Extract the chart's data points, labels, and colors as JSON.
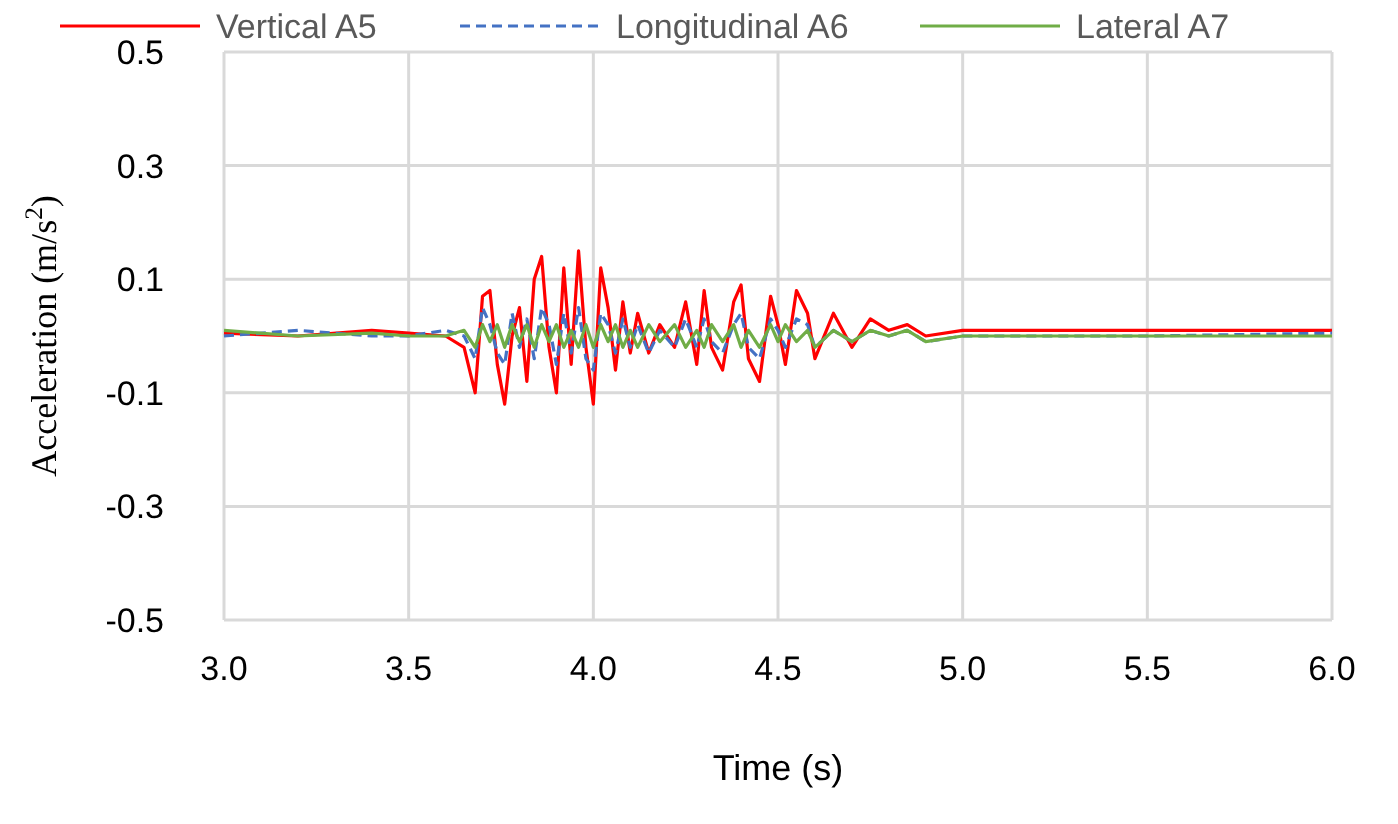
{
  "chart_data": {
    "type": "line",
    "xlabel": "Time (s)",
    "ylabel": "Acceleration (m/s$^{2}$)",
    "x": [
      3.0,
      3.2,
      3.4,
      3.5,
      3.6,
      3.65,
      3.68,
      3.7,
      3.72,
      3.74,
      3.76,
      3.78,
      3.8,
      3.82,
      3.84,
      3.86,
      3.88,
      3.9,
      3.92,
      3.94,
      3.96,
      3.98,
      4.0,
      4.02,
      4.04,
      4.06,
      4.08,
      4.1,
      4.12,
      4.15,
      4.18,
      4.22,
      4.25,
      4.28,
      4.3,
      4.32,
      4.35,
      4.38,
      4.4,
      4.42,
      4.45,
      4.48,
      4.5,
      4.52,
      4.55,
      4.58,
      4.6,
      4.65,
      4.7,
      4.75,
      4.8,
      4.85,
      4.9,
      5.0,
      5.2,
      5.5,
      6.0
    ],
    "series": [
      {
        "name": "Vertical A5",
        "color": "#ff0000",
        "line_style": "solid",
        "values": [
          0.005,
          0.0,
          0.01,
          0.005,
          0.0,
          -0.02,
          -0.1,
          0.07,
          0.08,
          -0.05,
          -0.12,
          0.0,
          0.05,
          -0.08,
          0.1,
          0.14,
          -0.02,
          -0.1,
          0.12,
          -0.05,
          0.15,
          -0.02,
          -0.12,
          0.12,
          0.05,
          -0.06,
          0.06,
          -0.03,
          0.04,
          -0.03,
          0.02,
          -0.02,
          0.06,
          -0.05,
          0.08,
          -0.02,
          -0.06,
          0.06,
          0.09,
          -0.04,
          -0.08,
          0.07,
          0.02,
          -0.05,
          0.08,
          0.04,
          -0.04,
          0.04,
          -0.02,
          0.03,
          0.01,
          0.02,
          0.0,
          0.01,
          0.01,
          0.01,
          0.01
        ]
      },
      {
        "name": "Longitudinal A6",
        "color": "#4472c4",
        "line_style": "dashed",
        "values": [
          0.0,
          0.01,
          0.0,
          0.0,
          0.01,
          0.0,
          -0.04,
          0.05,
          0.02,
          -0.03,
          -0.05,
          0.04,
          -0.02,
          0.03,
          -0.04,
          0.05,
          0.02,
          -0.05,
          0.04,
          -0.03,
          0.05,
          -0.04,
          -0.06,
          0.04,
          0.02,
          -0.03,
          0.03,
          -0.02,
          0.02,
          -0.03,
          0.01,
          -0.02,
          0.03,
          -0.02,
          0.03,
          -0.01,
          -0.03,
          0.02,
          0.04,
          -0.02,
          -0.04,
          0.03,
          0.01,
          -0.02,
          0.03,
          0.02,
          -0.02,
          0.01,
          -0.01,
          0.01,
          0.0,
          0.01,
          -0.01,
          0.0,
          0.0,
          0.0,
          0.005
        ]
      },
      {
        "name": "Lateral A7",
        "color": "#70ad47",
        "line_style": "solid",
        "values": [
          0.01,
          0.0,
          0.005,
          0.0,
          0.0,
          0.01,
          -0.02,
          0.02,
          -0.01,
          0.02,
          -0.02,
          0.02,
          -0.01,
          0.02,
          -0.02,
          0.02,
          -0.01,
          0.02,
          -0.02,
          0.01,
          -0.02,
          0.02,
          -0.02,
          0.02,
          -0.01,
          0.02,
          -0.02,
          0.01,
          -0.02,
          0.02,
          -0.01,
          0.02,
          -0.02,
          0.01,
          -0.02,
          0.02,
          -0.01,
          0.02,
          -0.02,
          0.01,
          -0.02,
          0.02,
          -0.01,
          0.02,
          -0.01,
          0.01,
          -0.02,
          0.01,
          -0.01,
          0.01,
          0.0,
          0.01,
          -0.01,
          0.0,
          0.0,
          0.0,
          0.0
        ]
      }
    ],
    "xlim": [
      3.0,
      6.0
    ],
    "xticks": [
      {
        "value": 3,
        "label": "3.0"
      },
      3.5,
      {
        "value": 4,
        "label": "4.0"
      },
      4.5,
      {
        "value": 5,
        "label": "5.0"
      },
      5.5,
      {
        "value": 6,
        "label": "6.0"
      }
    ],
    "ylim": [
      -0.5,
      0.5
    ],
    "yticks": [
      -0.5,
      -0.3,
      -0.1,
      0.1,
      0.3,
      0.5
    ],
    "grid": true,
    "legend": "top",
    "marker": "none"
  }
}
